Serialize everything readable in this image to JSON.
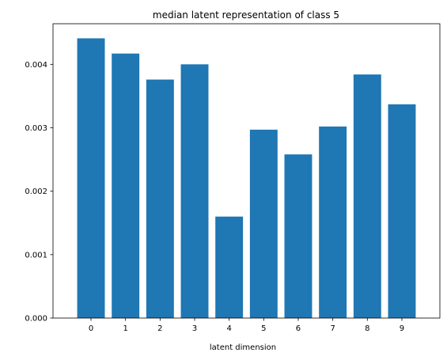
{
  "chart_data": {
    "type": "bar",
    "title": "median latent representation of class 5",
    "xlabel": "latent dimension",
    "ylabel": "",
    "categories": [
      "0",
      "1",
      "2",
      "3",
      "4",
      "5",
      "6",
      "7",
      "8",
      "9"
    ],
    "values": [
      0.00441,
      0.00417,
      0.00376,
      0.004,
      0.0016,
      0.00297,
      0.00258,
      0.00302,
      0.00384,
      0.00337
    ],
    "ylim": [
      0,
      0.00464
    ],
    "yticks": [
      "0.000",
      "0.001",
      "0.002",
      "0.003",
      "0.004"
    ],
    "ytick_values": [
      0,
      0.001,
      0.002,
      0.003,
      0.004
    ],
    "grid": false,
    "legend": "none",
    "bar_color": "#1f77b4"
  }
}
